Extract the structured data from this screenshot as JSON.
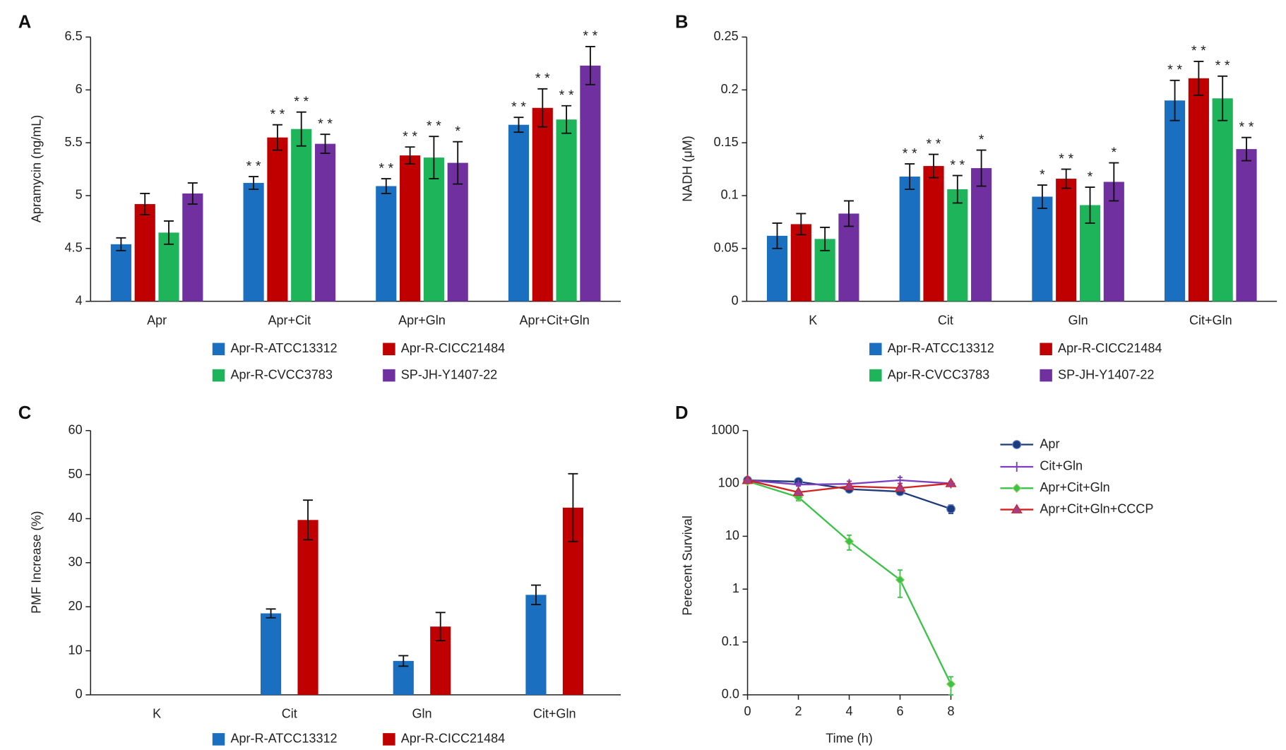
{
  "chart_data": [
    {
      "type": "bar",
      "label": "A",
      "ylabel": "Apramycin (ng/mL)",
      "categories": [
        "Apr",
        "Apr+Cit",
        "Apr+Gln",
        "Apr+Cit+Gln"
      ],
      "ylim": [
        4,
        6.5
      ],
      "yticks": [
        4,
        4.5,
        5,
        5.5,
        6,
        6.5
      ],
      "series": [
        {
          "name": "Apr-R-ATCC13312",
          "color": "#1a6fc0",
          "values": [
            4.54,
            5.12,
            5.09,
            5.67
          ],
          "errors": [
            0.06,
            0.06,
            0.07,
            0.07
          ],
          "significance": [
            null,
            "* *",
            "* *",
            "* *"
          ]
        },
        {
          "name": "Apr-R-CICC21484",
          "color": "#c00000",
          "values": [
            4.92,
            5.55,
            5.38,
            5.83
          ],
          "errors": [
            0.1,
            0.12,
            0.08,
            0.18
          ],
          "significance": [
            null,
            "* *",
            "* *",
            "* *"
          ]
        },
        {
          "name": "Apr-R-CVCC3783",
          "color": "#1db45a",
          "values": [
            4.65,
            5.63,
            5.36,
            5.72
          ],
          "errors": [
            0.11,
            0.16,
            0.2,
            0.13
          ],
          "significance": [
            null,
            "* *",
            "* *",
            "* *"
          ]
        },
        {
          "name": "SP-JH-Y1407-22",
          "color": "#7030a0",
          "values": [
            5.02,
            5.49,
            5.31,
            6.23
          ],
          "errors": [
            0.1,
            0.09,
            0.2,
            0.18
          ],
          "significance": [
            null,
            "* *",
            "*",
            "* *"
          ]
        }
      ]
    },
    {
      "type": "bar",
      "label": "B",
      "ylabel": "NADH (μM)",
      "categories": [
        "K",
        "Cit",
        "Gln",
        "Cit+Gln"
      ],
      "ylim": [
        0,
        0.25
      ],
      "yticks": [
        0,
        0.05,
        0.1,
        0.15,
        0.2,
        0.25
      ],
      "series": [
        {
          "name": "Apr-R-ATCC13312",
          "color": "#1a6fc0",
          "values": [
            0.062,
            0.118,
            0.099,
            0.19
          ],
          "errors": [
            0.012,
            0.012,
            0.011,
            0.019
          ],
          "significance": [
            null,
            "* *",
            "*",
            "* *"
          ]
        },
        {
          "name": "Apr-R-CICC21484",
          "color": "#c00000",
          "values": [
            0.073,
            0.128,
            0.116,
            0.211
          ],
          "errors": [
            0.01,
            0.011,
            0.009,
            0.016
          ],
          "significance": [
            null,
            "* *",
            "* *",
            "* *"
          ]
        },
        {
          "name": "Apr-R-CVCC3783",
          "color": "#1db45a",
          "values": [
            0.059,
            0.106,
            0.091,
            0.192
          ],
          "errors": [
            0.011,
            0.013,
            0.017,
            0.021
          ],
          "significance": [
            null,
            "* *",
            "*",
            "* *"
          ]
        },
        {
          "name": "SP-JH-Y1407-22",
          "color": "#7030a0",
          "values": [
            0.083,
            0.126,
            0.113,
            0.144
          ],
          "errors": [
            0.012,
            0.017,
            0.018,
            0.011
          ],
          "significance": [
            null,
            "*",
            "*",
            "* *"
          ]
        }
      ]
    },
    {
      "type": "bar",
      "label": "C",
      "ylabel": "PMF Increase (%)",
      "categories": [
        "K",
        "Cit",
        "Gln",
        "Cit+Gln"
      ],
      "ylim": [
        0,
        60
      ],
      "yticks": [
        0,
        10,
        20,
        30,
        40,
        50,
        60
      ],
      "series": [
        {
          "name": "Apr-R-ATCC13312",
          "color": "#1a6fc0",
          "values": [
            0,
            18.5,
            7.7,
            22.7
          ],
          "errors": [
            0,
            1,
            1.2,
            2.2
          ]
        },
        {
          "name": "Apr-R-CICC21484",
          "color": "#c00000",
          "values": [
            0,
            39.7,
            15.5,
            42.5
          ],
          "errors": [
            0,
            4.5,
            3.2,
            7.7
          ]
        }
      ]
    },
    {
      "type": "line",
      "label": "D",
      "xlabel": "Time (h)",
      "ylabel": "Perecent Survival",
      "x": [
        0,
        2,
        4,
        6,
        8
      ],
      "xlim": [
        0,
        8
      ],
      "xticks": [
        0,
        2,
        4,
        6,
        8
      ],
      "log_y": true,
      "ylim": [
        0.01,
        1000
      ],
      "yticks": [
        {
          "value": 0.01,
          "label": "0.0"
        },
        0.1,
        1,
        10,
        100,
        1000
      ],
      "series": [
        {
          "name": "Apr",
          "color": "#1f3a7a",
          "marker": "circle",
          "values": [
            115,
            108,
            78,
            70,
            33
          ],
          "errors": [
            0,
            6,
            6,
            6,
            6
          ]
        },
        {
          "name": "Cit+Gln",
          "color": "#7b3fbf",
          "marker": "plus",
          "values": [
            115,
            95,
            98,
            115,
            100
          ],
          "errors": [
            0,
            6,
            12,
            15,
            8
          ]
        },
        {
          "name": "Apr+Cit+Gln",
          "color": "#3cc24a",
          "marker": "diamond",
          "values": [
            110,
            55,
            8,
            1.5,
            0.016
          ],
          "errors": [
            0,
            8,
            2.5,
            0.8,
            0.006
          ]
        },
        {
          "name": "Apr+Cit+Gln+CCCP",
          "color": "#d42020",
          "marker": "triangle",
          "values": [
            115,
            68,
            88,
            82,
            100
          ],
          "errors": [
            0,
            5,
            6,
            6,
            6
          ]
        }
      ]
    }
  ]
}
